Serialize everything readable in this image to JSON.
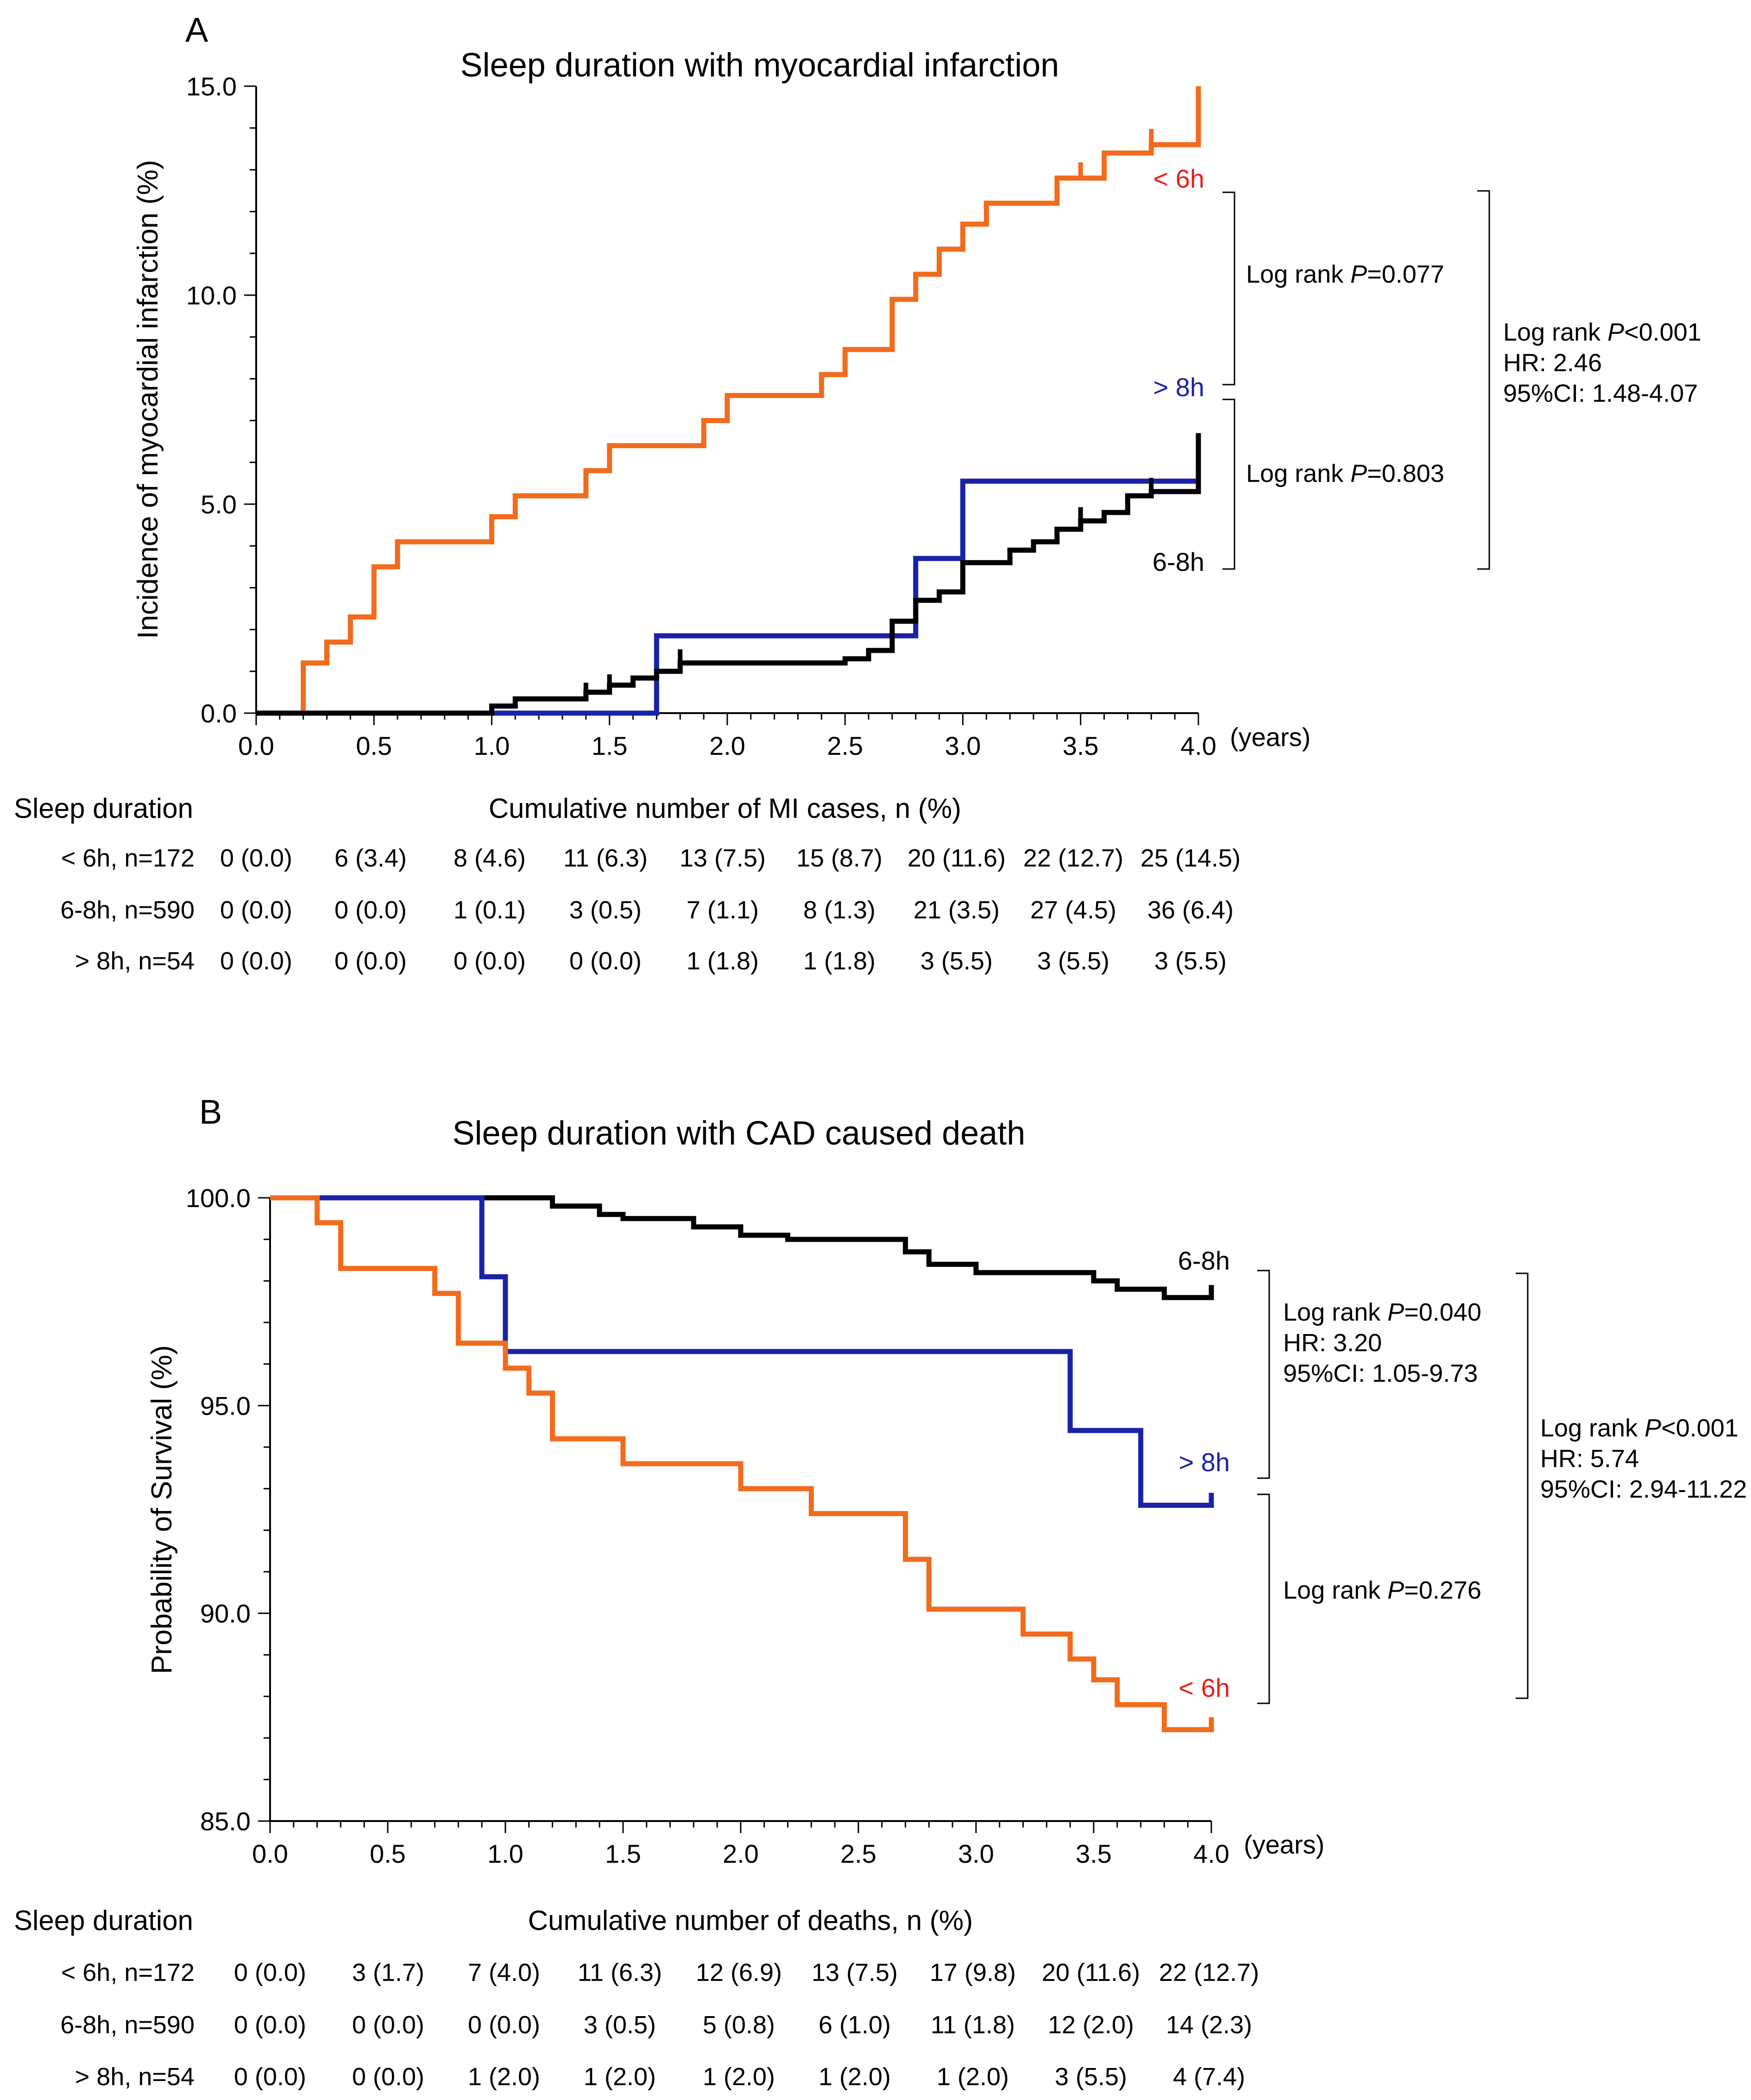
{
  "chart_data": [
    {
      "type": "line",
      "panel_label": "A",
      "title": "Sleep duration with myocardial infarction",
      "xlabel": "(years)",
      "ylabel": "Incidence of myocardial infarction (%)",
      "xlim": [
        0,
        4
      ],
      "ylim": [
        0,
        15
      ],
      "x_ticks": [
        "0.0",
        "0.5",
        "1.0",
        "1.5",
        "2.0",
        "2.5",
        "3.0",
        "3.5",
        "4.0"
      ],
      "y_ticks": [
        "0.0",
        "5.0",
        "10.0",
        "15.0"
      ],
      "x_tick_values": [
        0,
        0.5,
        1,
        1.5,
        2,
        2.5,
        3,
        3.5,
        4
      ],
      "y_tick_values": [
        0,
        5,
        10,
        15
      ],
      "step_style": "up",
      "series": [
        {
          "name": "< 6h",
          "color": "#f26b1d",
          "label_color": "#e0201b",
          "points": [
            [
              0,
              0
            ],
            [
              0.2,
              0
            ],
            [
              0.2,
              1.2
            ],
            [
              0.3,
              1.2
            ],
            [
              0.3,
              1.7
            ],
            [
              0.4,
              1.7
            ],
            [
              0.4,
              2.3
            ],
            [
              0.5,
              2.3
            ],
            [
              0.5,
              3.5
            ],
            [
              0.6,
              3.5
            ],
            [
              0.6,
              4.1
            ],
            [
              1.0,
              4.1
            ],
            [
              1.0,
              4.7
            ],
            [
              1.1,
              4.7
            ],
            [
              1.1,
              5.2
            ],
            [
              1.4,
              5.2
            ],
            [
              1.4,
              5.8
            ],
            [
              1.5,
              5.8
            ],
            [
              1.5,
              6.4
            ],
            [
              1.9,
              6.4
            ],
            [
              1.9,
              7.0
            ],
            [
              2.0,
              7.0
            ],
            [
              2.0,
              7.6
            ],
            [
              2.4,
              7.6
            ],
            [
              2.4,
              8.1
            ],
            [
              2.5,
              8.1
            ],
            [
              2.5,
              8.7
            ],
            [
              2.7,
              8.7
            ],
            [
              2.7,
              9.9
            ],
            [
              2.8,
              9.9
            ],
            [
              2.8,
              10.5
            ],
            [
              2.9,
              10.5
            ],
            [
              2.9,
              11.1
            ],
            [
              3.0,
              11.1
            ],
            [
              3.0,
              11.7
            ],
            [
              3.1,
              11.7
            ],
            [
              3.1,
              12.2
            ],
            [
              3.4,
              12.2
            ],
            [
              3.4,
              12.8
            ],
            [
              3.6,
              12.8
            ],
            [
              3.6,
              13.4
            ],
            [
              3.8,
              13.4
            ],
            [
              3.8,
              13.6
            ],
            [
              4.0,
              13.6
            ],
            [
              4.0,
              15.0
            ]
          ],
          "ticks": [
            [
              3.5,
              13.0
            ],
            [
              3.8,
              13.8
            ]
          ]
        },
        {
          "name": "> 8h",
          "color": "#1a22a8",
          "label_color": "#1a22a8",
          "points": [
            [
              0,
              0
            ],
            [
              1.7,
              0
            ],
            [
              1.7,
              1.85
            ],
            [
              2.8,
              1.85
            ],
            [
              2.8,
              3.7
            ],
            [
              3.0,
              3.7
            ],
            [
              3.0,
              5.55
            ],
            [
              4.0,
              5.55
            ]
          ],
          "ticks": []
        },
        {
          "name": "6-8h",
          "color": "#000000",
          "label_color": "#000000",
          "points": [
            [
              0,
              0
            ],
            [
              1.0,
              0
            ],
            [
              1.0,
              0.17
            ],
            [
              1.1,
              0.17
            ],
            [
              1.1,
              0.34
            ],
            [
              1.4,
              0.34
            ],
            [
              1.4,
              0.5
            ],
            [
              1.5,
              0.5
            ],
            [
              1.5,
              0.67
            ],
            [
              1.6,
              0.67
            ],
            [
              1.6,
              0.84
            ],
            [
              1.7,
              0.84
            ],
            [
              1.7,
              1.0
            ],
            [
              1.8,
              1.0
            ],
            [
              1.8,
              1.2
            ],
            [
              2.5,
              1.2
            ],
            [
              2.5,
              1.3
            ],
            [
              2.6,
              1.3
            ],
            [
              2.6,
              1.5
            ],
            [
              2.7,
              1.5
            ],
            [
              2.7,
              2.2
            ],
            [
              2.8,
              2.2
            ],
            [
              2.8,
              2.7
            ],
            [
              2.9,
              2.7
            ],
            [
              2.9,
              2.9
            ],
            [
              3.0,
              2.9
            ],
            [
              3.0,
              3.6
            ],
            [
              3.2,
              3.6
            ],
            [
              3.2,
              3.9
            ],
            [
              3.3,
              3.9
            ],
            [
              3.3,
              4.1
            ],
            [
              3.4,
              4.1
            ],
            [
              3.4,
              4.4
            ],
            [
              3.5,
              4.4
            ],
            [
              3.5,
              4.6
            ],
            [
              3.6,
              4.6
            ],
            [
              3.6,
              4.8
            ],
            [
              3.7,
              4.8
            ],
            [
              3.7,
              5.2
            ],
            [
              3.8,
              5.2
            ],
            [
              3.8,
              5.3
            ],
            [
              4.0,
              5.3
            ],
            [
              4.0,
              6.7
            ]
          ],
          "ticks": [
            [
              1.4,
              0.55
            ],
            [
              1.5,
              0.75
            ],
            [
              1.8,
              1.35
            ],
            [
              3.5,
              4.75
            ],
            [
              3.8,
              5.45
            ]
          ]
        }
      ],
      "tests": [
        {
          "lines": [
            "Log rank ",
            "P",
            "=0.077"
          ]
        },
        {
          "lines": [
            "Log rank ",
            "P",
            "=0.803"
          ]
        },
        {
          "lines": [
            "Log rank ",
            "P",
            "<0.001"
          ],
          "hr": "HR: 2.46",
          "ci": "95%CI: 1.48-4.07"
        }
      ],
      "risk_table": {
        "group_header": "Sleep duration",
        "header": "Cumulative number of MI cases, n (%)",
        "rows": [
          {
            "label": "< 6h, n=172",
            "values": [
              "0 (0.0)",
              "6 (3.4)",
              "8 (4.6)",
              "11 (6.3)",
              "13 (7.5)",
              "15 (8.7)",
              "20 (11.6)",
              "22 (12.7)",
              "25 (14.5)"
            ]
          },
          {
            "label": "6-8h, n=590",
            "values": [
              "0 (0.0)",
              "0 (0.0)",
              "1 (0.1)",
              "3 (0.5)",
              "7 (1.1)",
              "8 (1.3)",
              "21 (3.5)",
              "27 (4.5)",
              "36 (6.4)"
            ]
          },
          {
            "label": "> 8h, n=54",
            "values": [
              "0 (0.0)",
              "0 (0.0)",
              "0 (0.0)",
              "0 (0.0)",
              "1 (1.8)",
              "1 (1.8)",
              "3 (5.5)",
              "3 (5.5)",
              "3 (5.5)"
            ]
          }
        ]
      }
    },
    {
      "type": "line",
      "panel_label": "B",
      "title": "Sleep duration with CAD caused death",
      "xlabel": "(years)",
      "ylabel": "Probability of Survival (%)",
      "xlim": [
        0,
        4
      ],
      "ylim": [
        85,
        100
      ],
      "x_ticks": [
        "0.0",
        "0.5",
        "1.0",
        "1.5",
        "2.0",
        "2.5",
        "3.0",
        "3.5",
        "4.0"
      ],
      "y_ticks": [
        "85.0",
        "90.0",
        "95.0",
        "100.0"
      ],
      "x_tick_values": [
        0,
        0.5,
        1,
        1.5,
        2,
        2.5,
        3,
        3.5,
        4
      ],
      "y_tick_values": [
        85,
        90,
        95,
        100
      ],
      "step_style": "down",
      "series": [
        {
          "name": "6-8h",
          "color": "#000000",
          "label_color": "#000000",
          "points": [
            [
              0,
              100
            ],
            [
              1.2,
              100
            ],
            [
              1.2,
              99.8
            ],
            [
              1.4,
              99.8
            ],
            [
              1.4,
              99.6
            ],
            [
              1.5,
              99.6
            ],
            [
              1.5,
              99.5
            ],
            [
              1.8,
              99.5
            ],
            [
              1.8,
              99.3
            ],
            [
              2.0,
              99.3
            ],
            [
              2.0,
              99.1
            ],
            [
              2.2,
              99.1
            ],
            [
              2.2,
              99.0
            ],
            [
              2.7,
              99.0
            ],
            [
              2.7,
              98.7
            ],
            [
              2.8,
              98.7
            ],
            [
              2.8,
              98.4
            ],
            [
              3.0,
              98.4
            ],
            [
              3.0,
              98.2
            ],
            [
              3.5,
              98.2
            ],
            [
              3.5,
              98.0
            ],
            [
              3.6,
              98.0
            ],
            [
              3.6,
              97.8
            ],
            [
              3.8,
              97.8
            ],
            [
              3.8,
              97.6
            ],
            [
              4.0,
              97.6
            ],
            [
              4.0,
              97.9
            ]
          ],
          "ticks": []
        },
        {
          "name": "> 8h",
          "color": "#1a22a8",
          "label_color": "#1a22a8",
          "points": [
            [
              0,
              100
            ],
            [
              0.9,
              100
            ],
            [
              0.9,
              98.1
            ],
            [
              1.0,
              98.1
            ],
            [
              1.0,
              96.3
            ],
            [
              3.4,
              96.3
            ],
            [
              3.4,
              94.4
            ],
            [
              3.7,
              94.4
            ],
            [
              3.7,
              92.6
            ],
            [
              4.0,
              92.6
            ],
            [
              4.0,
              92.9
            ]
          ],
          "ticks": []
        },
        {
          "name": "< 6h",
          "color": "#f26b1d",
          "label_color": "#e0201b",
          "points": [
            [
              0,
              100
            ],
            [
              0.2,
              100
            ],
            [
              0.2,
              99.4
            ],
            [
              0.3,
              99.4
            ],
            [
              0.3,
              98.3
            ],
            [
              0.7,
              98.3
            ],
            [
              0.7,
              97.7
            ],
            [
              0.8,
              97.7
            ],
            [
              0.8,
              96.5
            ],
            [
              1.0,
              96.5
            ],
            [
              1.0,
              95.9
            ],
            [
              1.1,
              95.9
            ],
            [
              1.1,
              95.3
            ],
            [
              1.2,
              95.3
            ],
            [
              1.2,
              94.2
            ],
            [
              1.5,
              94.2
            ],
            [
              1.5,
              93.6
            ],
            [
              2.0,
              93.6
            ],
            [
              2.0,
              93.0
            ],
            [
              2.3,
              93.0
            ],
            [
              2.3,
              92.4
            ],
            [
              2.7,
              92.4
            ],
            [
              2.7,
              91.3
            ],
            [
              2.8,
              91.3
            ],
            [
              2.8,
              90.1
            ],
            [
              3.2,
              90.1
            ],
            [
              3.2,
              89.5
            ],
            [
              3.4,
              89.5
            ],
            [
              3.4,
              88.9
            ],
            [
              3.5,
              88.9
            ],
            [
              3.5,
              88.4
            ],
            [
              3.6,
              88.4
            ],
            [
              3.6,
              87.8
            ],
            [
              3.8,
              87.8
            ],
            [
              3.8,
              87.2
            ],
            [
              4.0,
              87.2
            ],
            [
              4.0,
              87.5
            ]
          ],
          "ticks": []
        }
      ],
      "tests": [
        {
          "lines": [
            "Log rank ",
            "P",
            "=0.040"
          ],
          "hr": "HR: 3.20",
          "ci": "95%CI: 1.05-9.73"
        },
        {
          "lines": [
            "Log rank ",
            "P",
            "=0.276"
          ]
        },
        {
          "lines": [
            "Log rank ",
            "P",
            "<0.001"
          ],
          "hr": "HR: 5.74",
          "ci": "95%CI: 2.94-11.22"
        }
      ],
      "risk_table": {
        "group_header": "Sleep duration",
        "header": "Cumulative number of deaths, n (%)",
        "rows": [
          {
            "label": "< 6h, n=172",
            "values": [
              "0 (0.0)",
              "3 (1.7)",
              "7 (4.0)",
              "11 (6.3)",
              "12 (6.9)",
              "13 (7.5)",
              "17 (9.8)",
              "20 (11.6)",
              "22 (12.7)"
            ]
          },
          {
            "label": "6-8h, n=590",
            "values": [
              "0 (0.0)",
              "0 (0.0)",
              "0 (0.0)",
              "3 (0.5)",
              "5 (0.8)",
              "6 (1.0)",
              "11 (1.8)",
              "12 (2.0)",
              "14 (2.3)"
            ]
          },
          {
            "label": "> 8h, n=54",
            "values": [
              "0 (0.0)",
              "0 (0.0)",
              "1 (2.0)",
              "1 (2.0)",
              "1 (2.0)",
              "1 (2.0)",
              "1 (2.0)",
              "3 (5.5)",
              "4 (7.4)"
            ]
          }
        ]
      }
    }
  ]
}
